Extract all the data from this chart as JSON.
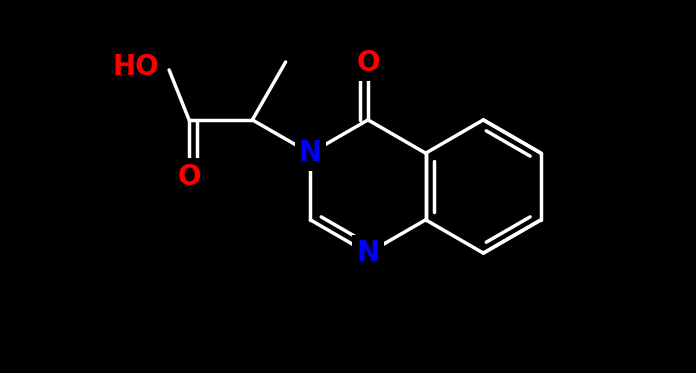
{
  "background_color": "#000000",
  "bond_color": "#ffffff",
  "N_color": "#0000ff",
  "O_color": "#ff0000",
  "font_size": 18,
  "bond_width": 2.5,
  "figsize": [
    6.96,
    3.73
  ],
  "dpi": 100,
  "xlim": [
    -4.5,
    4.5
  ],
  "ylim": [
    -2.8,
    2.8
  ]
}
